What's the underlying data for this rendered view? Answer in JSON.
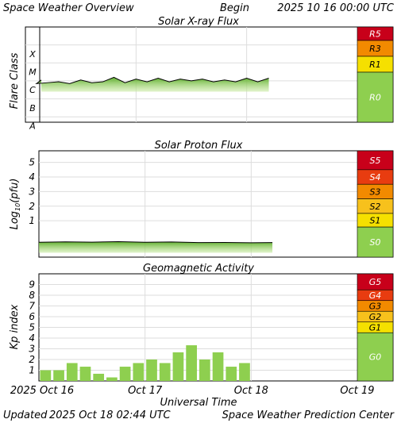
{
  "header": {
    "title": "Space Weather Overview",
    "begin_label": "Begin",
    "begin_date": "2025 10 16 00:00 UTC"
  },
  "footer": {
    "updated_label": "Updated",
    "updated_date": "2025 Oct 18 02:44 UTC",
    "credit": "Space Weather Prediction Center"
  },
  "x_axis": {
    "label": "Universal Time",
    "ticks": [
      "2025 Oct 16",
      "Oct 17",
      "Oct 18",
      "Oct 19"
    ]
  },
  "colors": {
    "green": "#8ecf4f",
    "yellow": "#f5e000",
    "gold": "#f7c11c",
    "orange": "#f28a00",
    "red_orange": "#e83c10",
    "red": "#c8001a",
    "grid": "#dddddd",
    "trace": "#000000"
  },
  "chart_data": [
    {
      "type": "area",
      "title": "Solar X-ray Flux",
      "ylabel": "Flare Class",
      "y_ticks": [
        "X",
        "M",
        "C",
        "B",
        "A"
      ],
      "ylim": [
        -8.3,
        -3
      ],
      "x_range_days": [
        0,
        3
      ],
      "x": [
        0,
        0.1,
        0.2,
        0.3,
        0.4,
        0.5,
        0.6,
        0.7,
        0.8,
        0.9,
        1.0,
        1.1,
        1.2,
        1.3,
        1.4,
        1.5,
        1.6,
        1.7,
        1.8,
        1.9,
        2.0,
        2.1,
        2.2
      ],
      "values": [
        -5.95,
        -6.15,
        -6.1,
        -6.05,
        -6.15,
        -5.95,
        -6.1,
        -6.05,
        -5.8,
        -6.1,
        -5.9,
        -6.05,
        -5.85,
        -6.05,
        -5.9,
        -6.0,
        -5.9,
        -6.05,
        -5.95,
        -6.05,
        -5.85,
        -6.05,
        -5.85
      ],
      "scale_bands": [
        {
          "label": "R5",
          "level": "X"
        },
        {
          "label": "R3",
          "level": "X"
        },
        {
          "label": "R1",
          "level": "M"
        },
        {
          "label": "R0",
          "level": "below M"
        }
      ]
    },
    {
      "type": "area",
      "title": "Solar Proton Flux",
      "ylabel": "Log10(pfu)",
      "y_ticks": [
        5,
        4,
        3,
        2,
        1
      ],
      "ylim": [
        -1.5,
        5.8
      ],
      "x_range_days": [
        0,
        3
      ],
      "x": [
        0,
        0.25,
        0.5,
        0.75,
        1.0,
        1.25,
        1.5,
        1.75,
        2.0,
        2.2
      ],
      "values": [
        -0.48,
        -0.45,
        -0.47,
        -0.44,
        -0.48,
        -0.46,
        -0.5,
        -0.49,
        -0.51,
        -0.5
      ],
      "scale_bands": [
        {
          "label": "S5",
          "level": 5
        },
        {
          "label": "S4",
          "level": 4
        },
        {
          "label": "S3",
          "level": 3
        },
        {
          "label": "S2",
          "level": 2
        },
        {
          "label": "S1",
          "level": 1
        },
        {
          "label": "S0",
          "level": "below 1"
        }
      ]
    },
    {
      "type": "bar",
      "title": "Geomagnetic Activity",
      "ylabel": "Kp index",
      "y_ticks": [
        9,
        8,
        7,
        6,
        5,
        4,
        3,
        2,
        1
      ],
      "ylim": [
        0,
        10
      ],
      "x_range_days": [
        0,
        3
      ],
      "bin_hours": 3,
      "values": [
        1.0,
        1.0,
        1.67,
        1.33,
        0.67,
        0.33,
        1.33,
        1.67,
        2.0,
        1.67,
        2.67,
        3.33,
        2.0,
        2.67,
        1.33,
        1.67
      ],
      "scale_bands": [
        {
          "label": "G5",
          "level": 9
        },
        {
          "label": "G4",
          "level": 8
        },
        {
          "label": "G3",
          "level": 7
        },
        {
          "label": "G2",
          "level": 6
        },
        {
          "label": "G1",
          "level": 5
        },
        {
          "label": "G0",
          "level": "below 5"
        }
      ]
    }
  ]
}
